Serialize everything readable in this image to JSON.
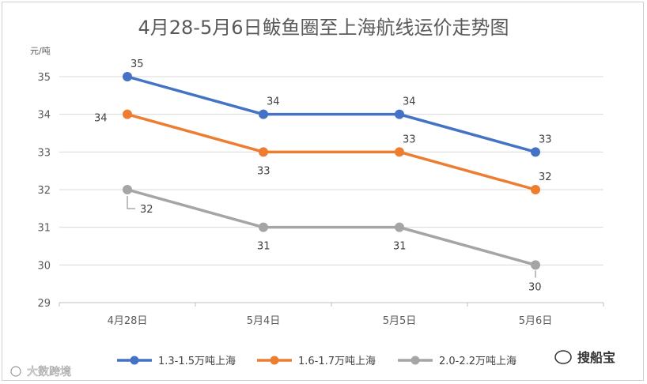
{
  "chart_data": {
    "type": "line",
    "title": "4月28-5月6日鲅鱼圈至上海航线运价走势图",
    "ylabel": "元/吨",
    "categories": [
      "4月28日",
      "5月4日",
      "5月5日",
      "5月6日"
    ],
    "ylim": [
      29,
      35
    ],
    "yticks": [
      "29",
      "30",
      "31",
      "32",
      "33",
      "34",
      "35"
    ],
    "grid": true,
    "legend": "bottom",
    "series": [
      {
        "name": "1.3-1.5万吨上海",
        "color": "#4472c4",
        "values": [
          35,
          34,
          34,
          33
        ]
      },
      {
        "name": "1.6-1.7万吨上海",
        "color": "#ed7d31",
        "values": [
          34,
          33,
          33,
          32
        ]
      },
      {
        "name": "2.0-2.2万吨上海",
        "color": "#a5a5a5",
        "values": [
          32,
          31,
          31,
          30
        ]
      }
    ]
  },
  "watermarks": {
    "left": "大数跨境",
    "right": "搜船宝"
  }
}
